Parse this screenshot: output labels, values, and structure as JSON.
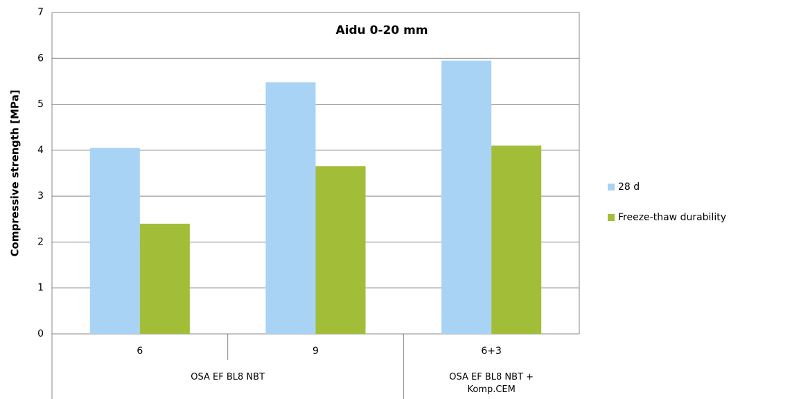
{
  "chart_data": {
    "type": "bar",
    "title": "Aidu 0-20  mm",
    "y_label": "Compressive strength [MPa]",
    "categories": [
      "6",
      "9",
      "6+3"
    ],
    "category_groups": [
      "OSA EF BL8 NBT",
      "OSA EF BL8 NBT",
      "OSA EF BL8 NBT + Komp.CEM"
    ],
    "series": [
      {
        "name": "28 d",
        "color": "#a9d3f5",
        "values": [
          4.05,
          5.48,
          5.95
        ]
      },
      {
        "name": "Freeze-thaw durability",
        "color": "#a2bd38",
        "values": [
          2.4,
          3.65,
          4.1
        ]
      }
    ],
    "ylim": [
      0,
      7
    ],
    "yticks": [
      0,
      1,
      2,
      3,
      4,
      5,
      6,
      7
    ],
    "grid": true,
    "legend": "right"
  }
}
